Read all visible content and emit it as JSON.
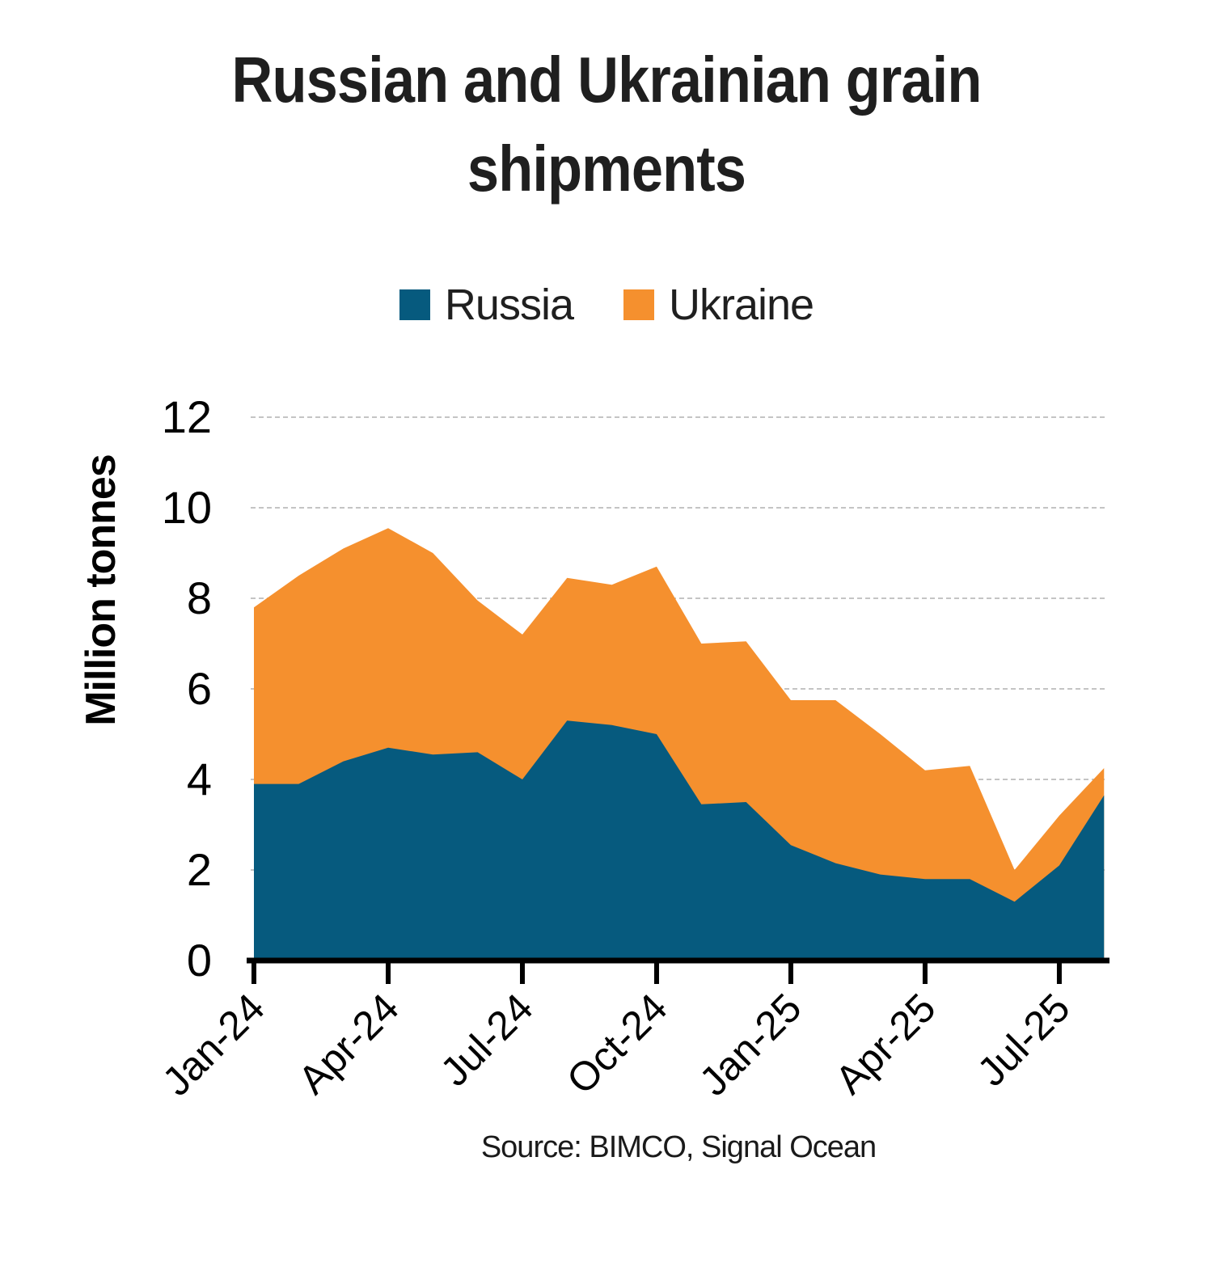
{
  "chart_data": {
    "type": "area",
    "stacked": true,
    "title": "Russian and Ukrainian grain shipments",
    "ylabel": "Million tonnes",
    "source_note": "Source: BIMCO, Signal Ocean",
    "grid": "horizontal-dashed-light-gray",
    "legend_position": "top-center",
    "ylim": [
      0,
      12
    ],
    "y_ticks": [
      0,
      2,
      4,
      6,
      8,
      10,
      12
    ],
    "x_months": [
      "Jan-24",
      "Feb-24",
      "Mar-24",
      "Apr-24",
      "May-24",
      "Jun-24",
      "Jul-24",
      "Aug-24",
      "Sep-24",
      "Oct-24",
      "Nov-24",
      "Dec-24",
      "Jan-25",
      "Feb-25",
      "Mar-25",
      "Apr-25",
      "May-25",
      "Jun-25",
      "Jul-25",
      "Aug-25"
    ],
    "x_tick_labels": [
      "Jan-24",
      "Apr-24",
      "Jul-24",
      "Oct-24",
      "Jan-25",
      "Apr-25",
      "Jul-25"
    ],
    "series": [
      {
        "name": "Russia",
        "color": "#065a7e",
        "values": [
          3.9,
          3.9,
          4.4,
          4.7,
          4.55,
          4.6,
          4.0,
          5.3,
          5.2,
          5.0,
          3.45,
          3.5,
          2.55,
          2.15,
          1.9,
          1.8,
          1.8,
          1.3,
          2.1,
          3.65
        ]
      },
      {
        "name": "Ukraine",
        "color": "#f5902e",
        "values": [
          3.9,
          4.6,
          4.7,
          4.85,
          4.45,
          3.35,
          3.2,
          3.15,
          3.1,
          3.7,
          3.55,
          3.55,
          3.2,
          3.6,
          3.1,
          2.4,
          2.5,
          0.7,
          1.1,
          0.6
        ]
      }
    ],
    "totals": [
      7.8,
      8.5,
      9.1,
      9.55,
      9.0,
      7.95,
      7.2,
      8.45,
      8.3,
      8.7,
      7.0,
      7.05,
      5.75,
      5.75,
      5.0,
      4.2,
      4.3,
      2.0,
      3.2,
      4.25
    ]
  },
  "legend": {
    "items": [
      {
        "label": "Russia",
        "color": "#065a7e"
      },
      {
        "label": "Ukraine",
        "color": "#f5902e"
      }
    ]
  },
  "style": {
    "axis_color": "#000000",
    "gridline_color": "#c4c4c4",
    "text_color": "#1a1a1a"
  }
}
